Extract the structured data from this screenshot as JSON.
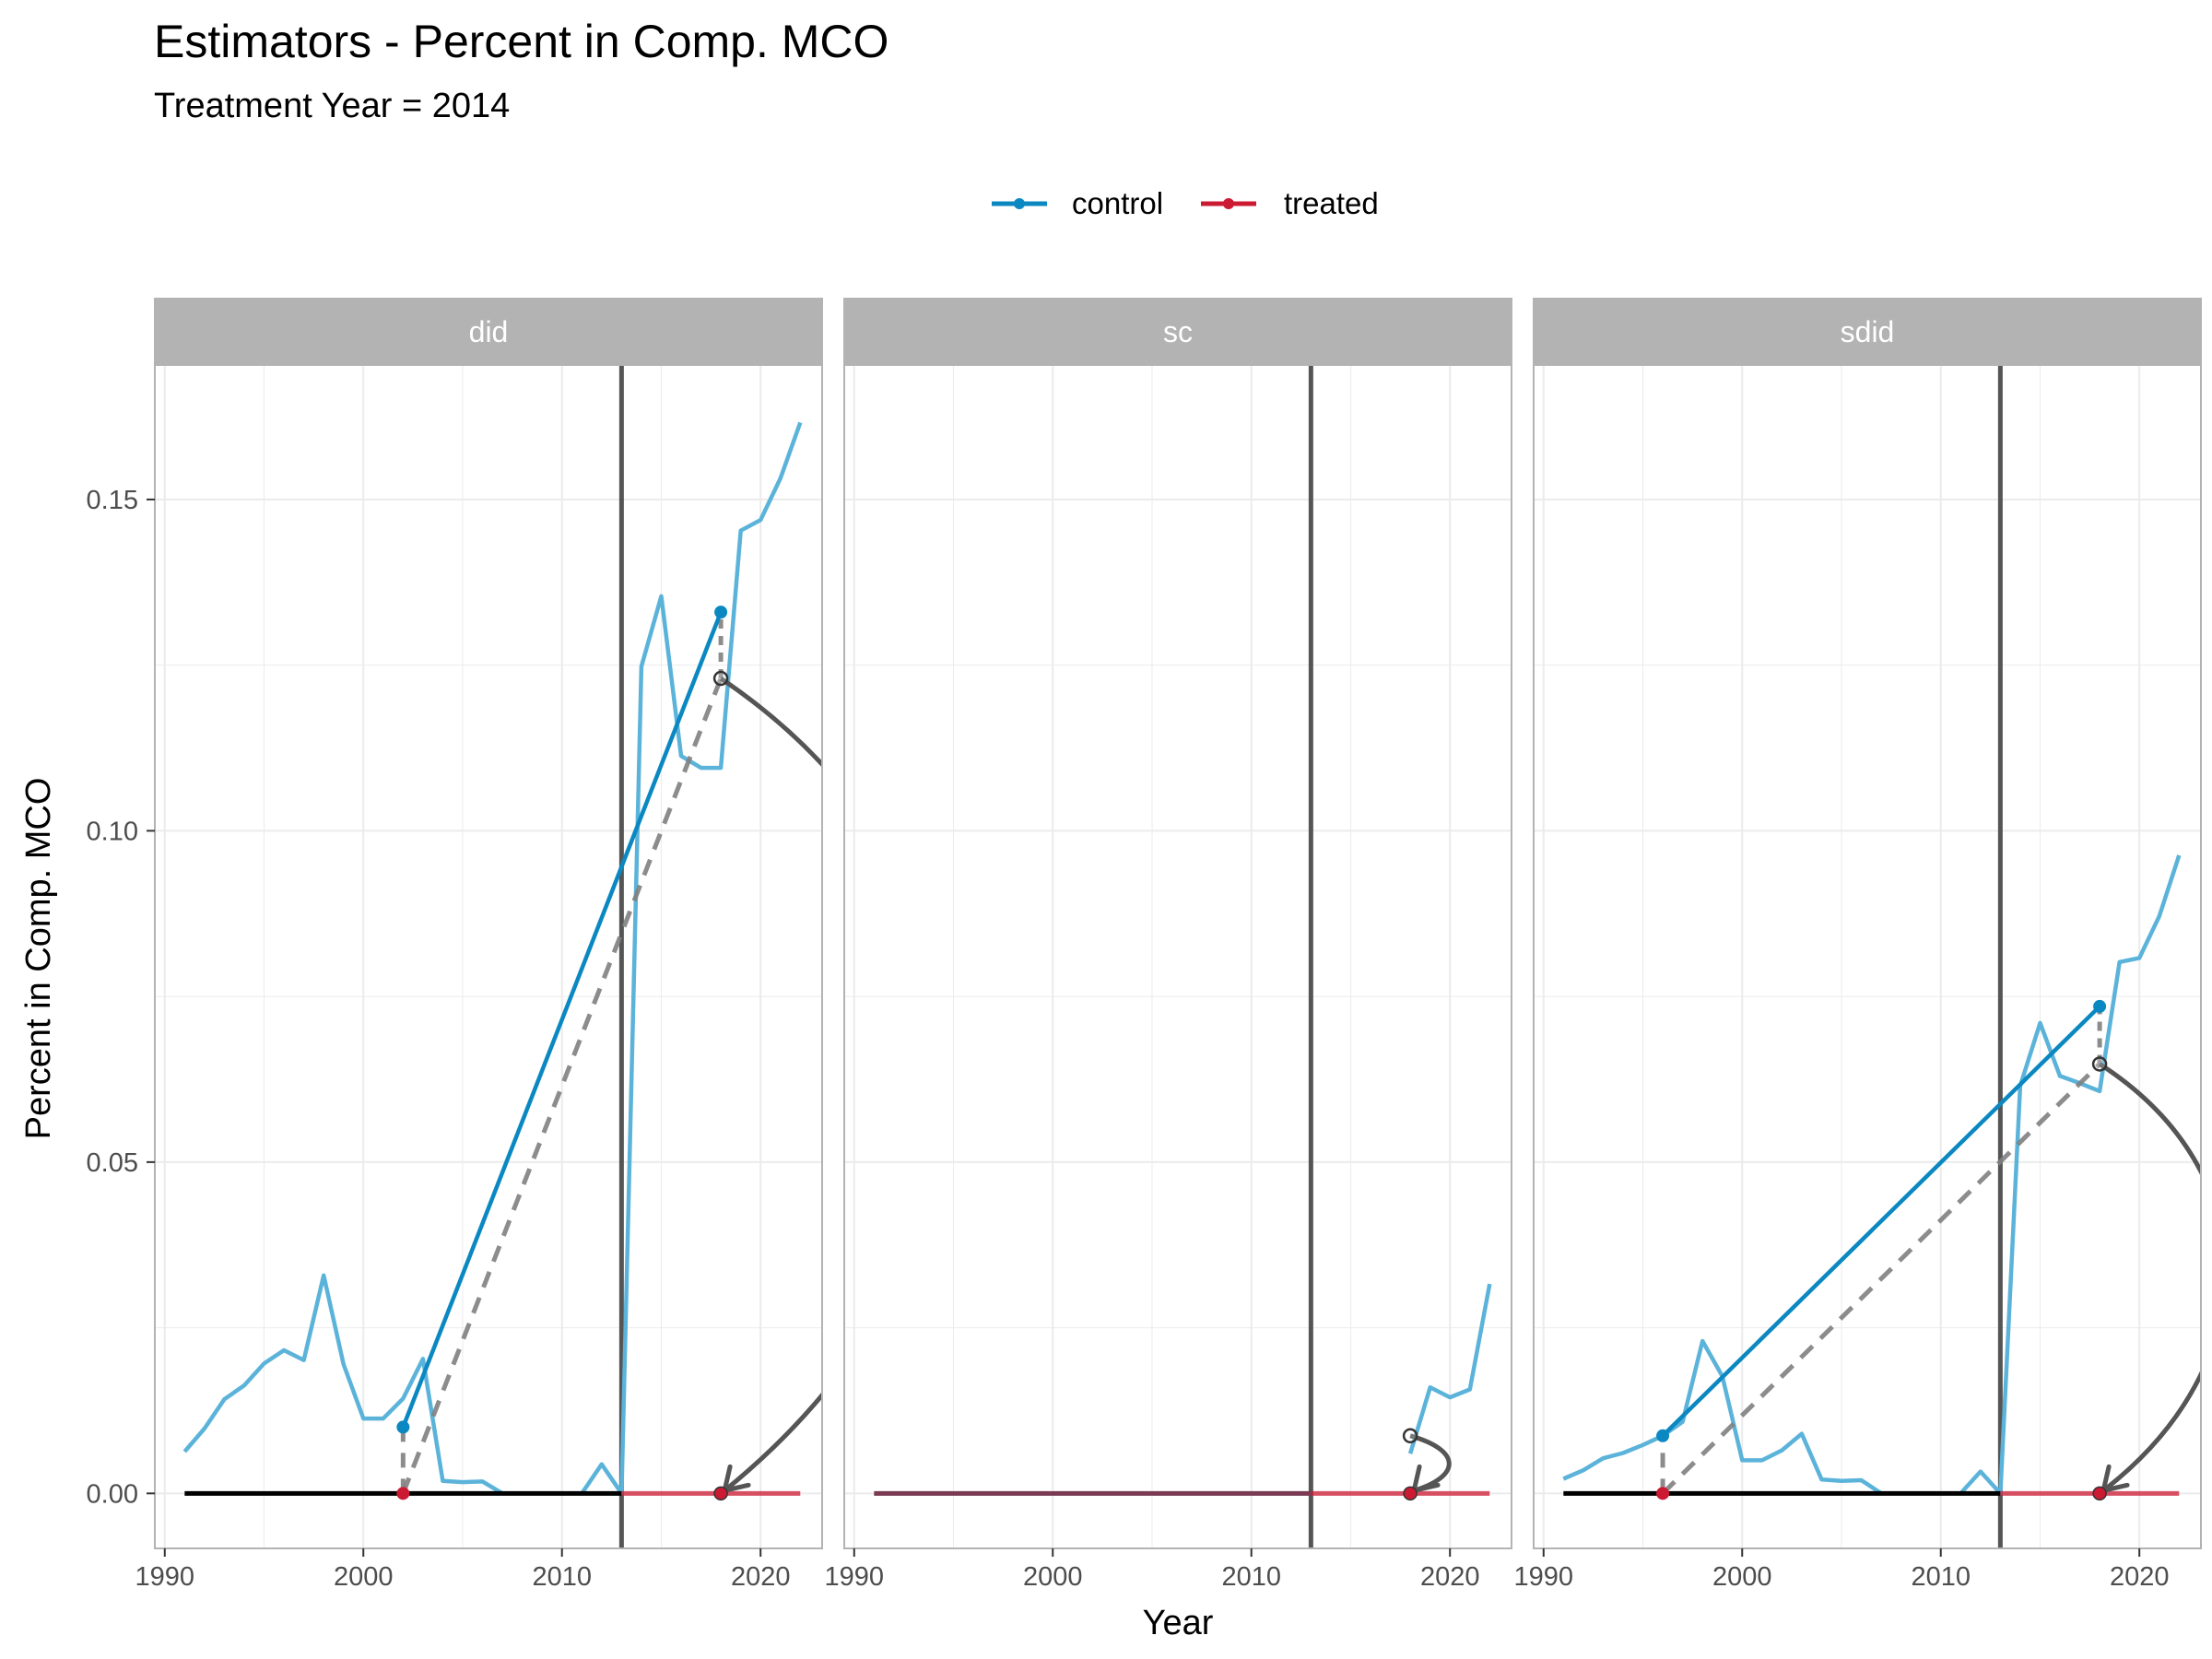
{
  "chart_data": {
    "type": "line",
    "title": "Estimators - Percent in Comp. MCO",
    "subtitle": "Treatment Year = 2014",
    "xlabel": "Year",
    "ylabel": "Percent in Comp. MCO",
    "xlim": [
      1989.5,
      2023.1
    ],
    "ylim": [
      -0.0083,
      0.1703
    ],
    "x_ticks": [
      1990,
      2000,
      2010,
      2020
    ],
    "x_tick_labels": [
      "1990",
      "2000",
      "2010",
      "2020"
    ],
    "y_ticks": [
      0.0,
      0.05,
      0.1,
      0.15
    ],
    "y_tick_labels": [
      "0.00",
      "0.05",
      "0.10",
      "0.15"
    ],
    "grid": true,
    "legend_position": "top",
    "legend": [
      {
        "label": "control",
        "color": "#0b88c1"
      },
      {
        "label": "treated",
        "color": "#cc1a33"
      }
    ],
    "colors": {
      "control_line": "#5bb3da",
      "control_fit": "#0b88c1",
      "treated": "#cc1a33",
      "pre_treated": "#000000",
      "vline": "#555555",
      "counterfactual": "#7f7f7f",
      "arrow": "#555555",
      "strip_bg": "#b3b3b3"
    },
    "treatment_vline": 2013,
    "panels": [
      {
        "name": "did",
        "control_series": {
          "x": [
            1991,
            1992,
            1993,
            1994,
            1995,
            1996,
            1997,
            1998,
            1999,
            2000,
            2001,
            2002,
            2003,
            2004,
            2005,
            2006,
            2007,
            2008,
            2009,
            2010,
            2011,
            2012,
            2013,
            2014,
            2015,
            2016,
            2017,
            2018,
            2019,
            2020,
            2021,
            2022
          ],
          "y": [
            0.0063,
            0.0098,
            0.0142,
            0.0163,
            0.0196,
            0.0216,
            0.0201,
            0.0329,
            0.0195,
            0.0113,
            0.0113,
            0.0143,
            0.0203,
            0.0019,
            0.0017,
            0.0018,
            0.0,
            0.0,
            0.0,
            0.0,
            0.0,
            0.0044,
            0.0,
            0.1248,
            0.1354,
            0.1113,
            0.1095,
            0.1095,
            0.1453,
            0.1469,
            0.1532,
            0.1616
          ]
        },
        "treated_pre": {
          "x": [
            1991,
            2013
          ],
          "y": [
            0.0,
            0.0
          ]
        },
        "treated_post": {
          "x": [
            2013,
            2022
          ],
          "y": [
            0.0,
            0.0
          ]
        },
        "pre_point": {
          "x": 2002,
          "control": 0.01,
          "treated": 0.0
        },
        "post_point": {
          "x": 2018,
          "control": 0.133,
          "counterfactual": 0.123,
          "treated": 0.0
        },
        "arrow_bend": 0.35
      },
      {
        "name": "sc",
        "control_series": {
          "x": [
            2018,
            2019,
            2020,
            2021,
            2022
          ],
          "y": [
            0.006,
            0.016,
            0.0145,
            0.0157,
            0.0316
          ]
        },
        "treated_pre": {
          "x": [
            1991,
            2013
          ],
          "y": [
            0.0,
            0.0
          ]
        },
        "treated_post": {
          "x": [
            2013,
            2022
          ],
          "y": [
            0.0,
            0.0
          ]
        },
        "treated_pre_blended": true,
        "pre_point": null,
        "post_point": {
          "x": 2018,
          "control": null,
          "counterfactual": 0.0087,
          "treated": 0.0
        },
        "arrow_bend": 0.6
      },
      {
        "name": "sdid",
        "control_series": {
          "x": [
            1991,
            1992,
            1993,
            1994,
            1995,
            1996,
            1997,
            1998,
            1999,
            2000,
            2001,
            2002,
            2003,
            2004,
            2005,
            2006,
            2007,
            2008,
            2009,
            2010,
            2011,
            2012,
            2013,
            2014,
            2015,
            2016,
            2017,
            2018,
            2019,
            2020,
            2021,
            2022
          ],
          "y": [
            0.0022,
            0.0035,
            0.0053,
            0.0061,
            0.0073,
            0.0087,
            0.0108,
            0.023,
            0.0177,
            0.005,
            0.005,
            0.0065,
            0.009,
            0.0021,
            0.0019,
            0.002,
            0.0,
            0.0,
            0.0,
            0.0,
            0.0,
            0.0033,
            0.0,
            0.0615,
            0.071,
            0.063,
            0.0619,
            0.0607,
            0.0802,
            0.0808,
            0.0871,
            0.0963
          ]
        },
        "treated_pre": {
          "x": [
            1991,
            2013
          ],
          "y": [
            0.0,
            0.0
          ]
        },
        "treated_post": {
          "x": [
            2013,
            2022
          ],
          "y": [
            0.0,
            0.0
          ]
        },
        "pre_point": {
          "x": 1996,
          "control": 0.0087,
          "treated": 0.0
        },
        "post_point": {
          "x": 2018,
          "control": 0.0735,
          "counterfactual": 0.0648,
          "treated": 0.0
        },
        "arrow_bend": 0.35
      }
    ]
  }
}
